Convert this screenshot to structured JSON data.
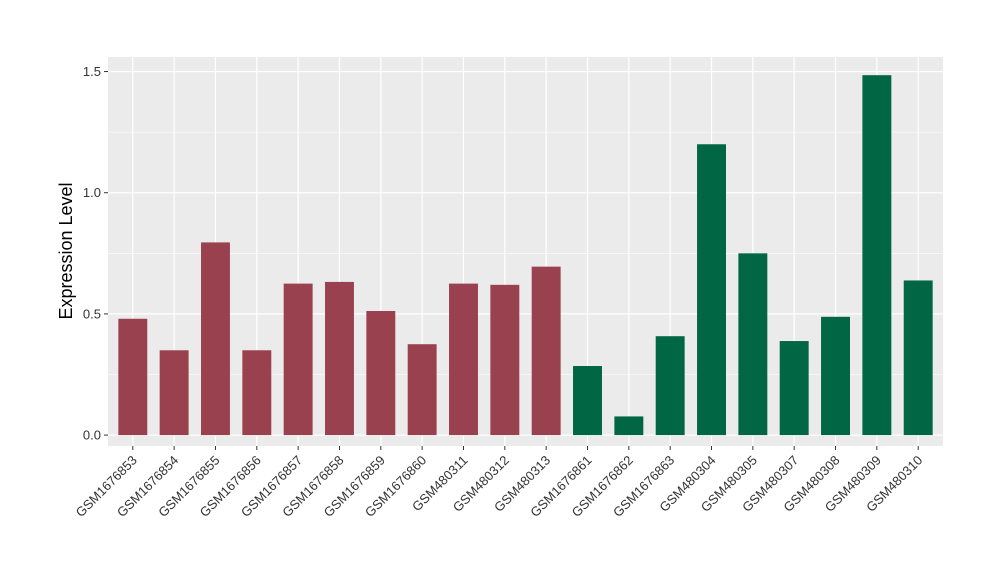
{
  "chart_data": {
    "type": "bar",
    "ylabel": "Expression Level",
    "xlabel": "",
    "ylim": [
      -0.045,
      1.56
    ],
    "yticks": [
      0.0,
      0.5,
      1.0,
      1.5
    ],
    "ytick_labels": [
      "0.0",
      "0.5",
      "1.0",
      "1.5"
    ],
    "grid": true,
    "categories": [
      "GSM1676853",
      "GSM1676854",
      "GSM1676855",
      "GSM1676856",
      "GSM1676857",
      "GSM1676858",
      "GSM1676859",
      "GSM1676860",
      "GSM480311",
      "GSM480312",
      "GSM480313",
      "GSM1676861",
      "GSM1676862",
      "GSM1676863",
      "GSM480304",
      "GSM480305",
      "GSM480307",
      "GSM480308",
      "GSM480309",
      "GSM480310"
    ],
    "values": [
      0.48,
      0.35,
      0.795,
      0.35,
      0.625,
      0.632,
      0.512,
      0.375,
      0.625,
      0.62,
      0.695,
      0.285,
      0.077,
      0.408,
      1.2,
      0.75,
      0.388,
      0.488,
      1.485,
      0.638
    ],
    "bar_colors": [
      "#9A4150",
      "#9A4150",
      "#9A4150",
      "#9A4150",
      "#9A4150",
      "#9A4150",
      "#9A4150",
      "#9A4150",
      "#9A4150",
      "#9A4150",
      "#9A4150",
      "#006644",
      "#006644",
      "#006644",
      "#006644",
      "#006644",
      "#006644",
      "#006644",
      "#006644",
      "#006644"
    ],
    "colors": {
      "panel_bg": "#EBEBEB",
      "grid": "#FFFFFF",
      "group_1": "#9A4150",
      "group_2": "#006644"
    }
  }
}
